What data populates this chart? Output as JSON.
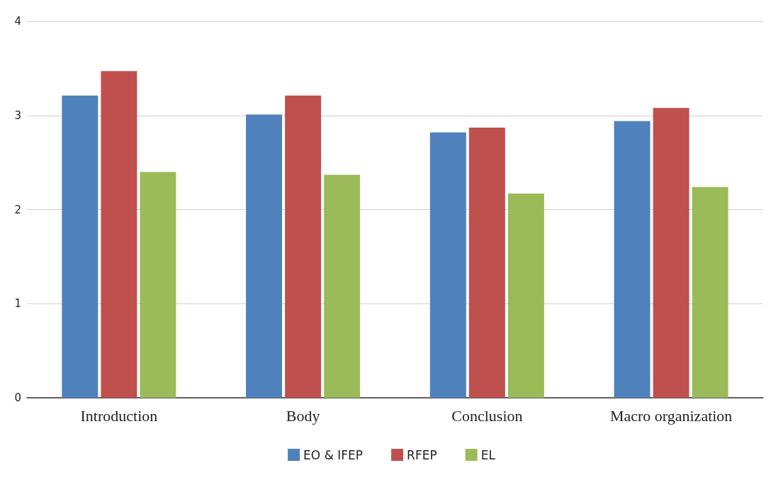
{
  "chart_data": {
    "type": "bar",
    "categories": [
      "Introduction",
      "Body",
      "Conclusion",
      "Macro organization"
    ],
    "series": [
      {
        "name": "EO & IFEP",
        "color": "#4f81bd",
        "values": [
          3.21,
          3.01,
          2.82,
          2.94
        ]
      },
      {
        "name": "RFEP",
        "color": "#c0504d",
        "values": [
          3.47,
          3.21,
          2.87,
          3.08
        ]
      },
      {
        "name": "EL",
        "color": "#9bbb59",
        "values": [
          2.4,
          2.37,
          2.17,
          2.24
        ]
      }
    ],
    "ylim": [
      0,
      4
    ],
    "yticks": [
      0,
      1,
      2,
      3,
      4
    ],
    "grid": "y",
    "legend": "bottom"
  }
}
